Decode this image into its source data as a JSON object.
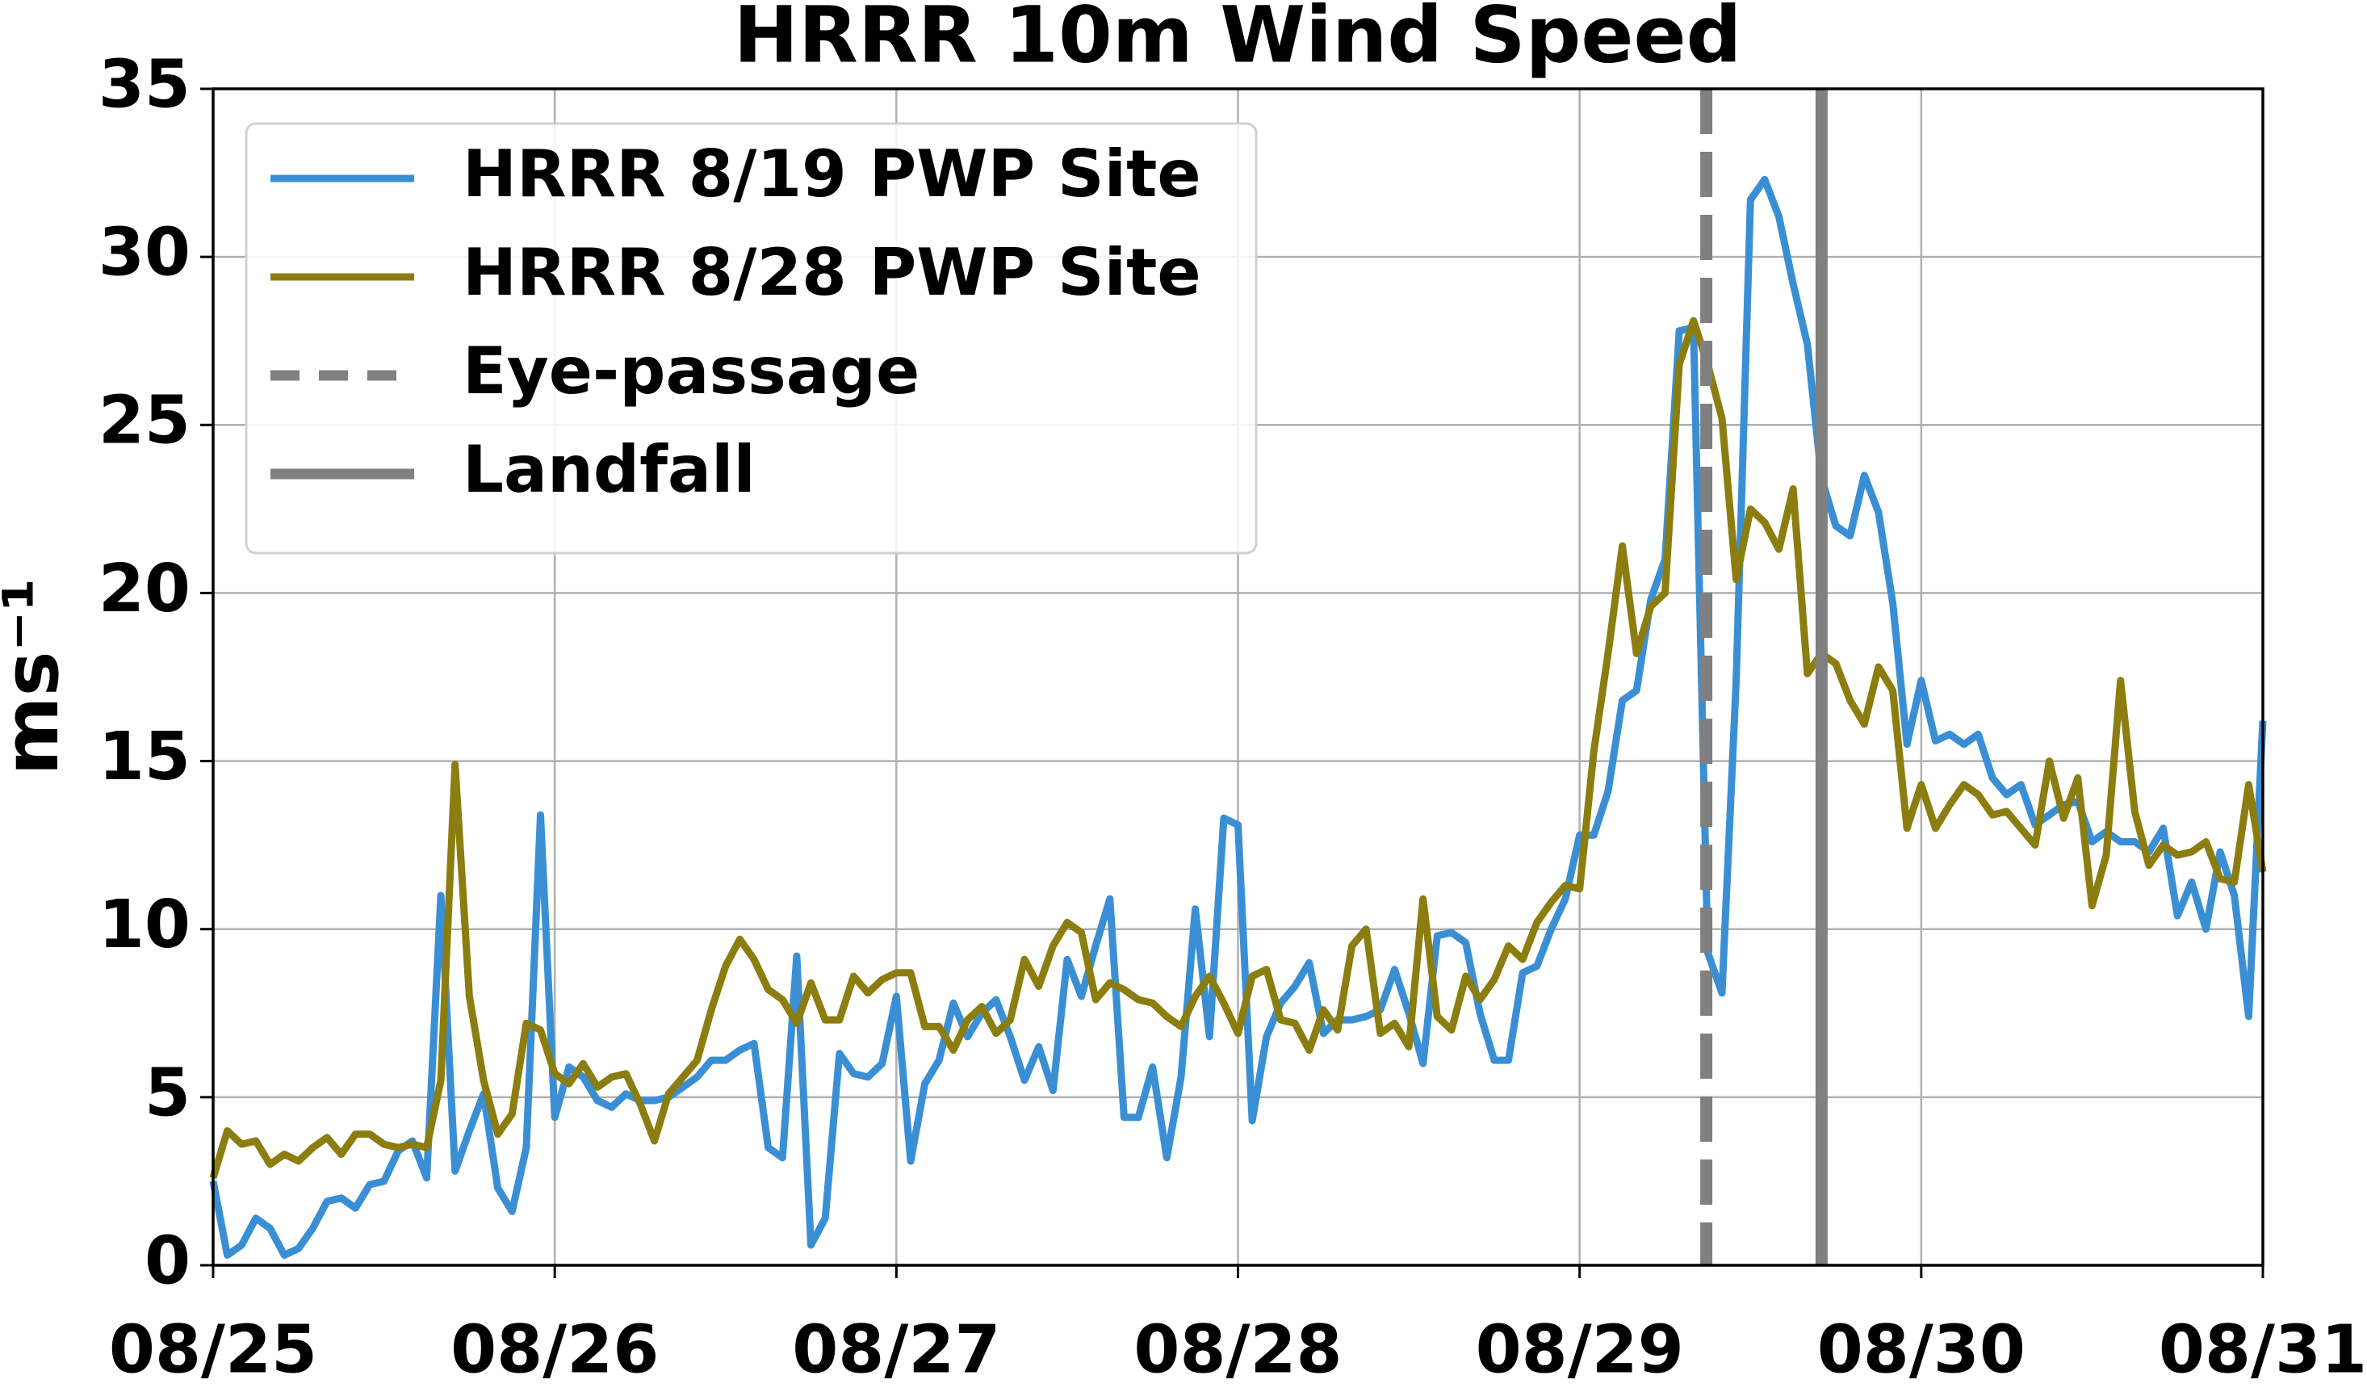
{
  "chart_data": {
    "type": "line",
    "title": "HRRR 10m Wind Speed",
    "y_label": "ms⁻¹",
    "x": [
      0,
      1,
      2,
      3,
      4,
      5,
      6,
      7,
      8,
      9,
      10,
      11,
      12,
      13,
      14,
      15,
      16,
      17,
      18,
      19,
      20,
      21,
      22,
      23,
      24,
      25,
      26,
      27,
      28,
      29,
      30,
      31,
      32,
      33,
      34,
      35,
      36,
      37,
      38,
      39,
      40,
      41,
      42,
      43,
      44,
      45,
      46,
      47,
      48,
      49,
      50,
      51,
      52,
      53,
      54,
      55,
      56,
      57,
      58,
      59,
      60,
      61,
      62,
      63,
      64,
      65,
      66,
      67,
      68,
      69,
      70,
      71,
      72,
      73,
      74,
      75,
      76,
      77,
      78,
      79,
      80,
      81,
      82,
      83,
      84,
      85,
      86,
      87,
      88,
      89,
      90,
      91,
      92,
      93,
      94,
      95,
      96,
      97,
      98,
      99,
      100,
      101,
      102,
      103,
      104,
      105,
      106,
      107,
      108,
      109,
      110,
      111,
      112,
      113,
      114,
      115,
      116,
      117,
      118,
      119,
      120,
      121,
      122,
      123,
      124,
      125,
      126,
      127,
      128,
      129,
      130,
      131,
      132,
      133,
      134,
      135,
      136,
      137,
      138,
      139,
      140,
      141,
      142,
      143,
      144
    ],
    "series": [
      {
        "name": "HRRR 8/19 PWP Site",
        "color": "#3a8fd4",
        "values": [
          2.5,
          0.3,
          0.6,
          1.4,
          1.1,
          0.3,
          0.5,
          1.1,
          1.9,
          2.0,
          1.7,
          2.4,
          2.5,
          3.4,
          3.7,
          2.6,
          11.0,
          2.8,
          4.0,
          5.1,
          2.3,
          1.6,
          3.5,
          13.4,
          4.4,
          5.9,
          5.6,
          4.9,
          4.7,
          5.1,
          4.9,
          4.9,
          5.0,
          5.3,
          5.6,
          6.1,
          6.1,
          6.4,
          6.6,
          3.5,
          3.2,
          9.2,
          0.6,
          1.4,
          6.3,
          5.7,
          5.6,
          6.0,
          8.0,
          3.1,
          5.4,
          6.1,
          7.8,
          6.8,
          7.5,
          7.9,
          6.8,
          5.5,
          6.5,
          5.2,
          9.1,
          8.0,
          9.5,
          10.9,
          4.4,
          4.4,
          5.9,
          3.2,
          5.6,
          10.6,
          6.8,
          13.3,
          13.1,
          4.3,
          6.8,
          7.8,
          8.3,
          9.0,
          6.9,
          7.3,
          7.3,
          7.4,
          7.6,
          8.8,
          7.5,
          6.0,
          9.8,
          9.9,
          9.6,
          7.5,
          6.1,
          6.1,
          8.7,
          8.9,
          10.0,
          10.9,
          12.8,
          12.8,
          14.1,
          16.8,
          17.1,
          19.8,
          21.0,
          27.8,
          27.9,
          9.3,
          8.1,
          17.4,
          31.7,
          32.3,
          31.2,
          29.2,
          27.4,
          23.4,
          22.0,
          21.7,
          23.5,
          22.4,
          19.7,
          15.5,
          17.4,
          15.6,
          15.8,
          15.5,
          15.8,
          14.5,
          14.0,
          14.3,
          13.1,
          13.4,
          13.7,
          13.8,
          12.6,
          12.9,
          12.6,
          12.6,
          12.3,
          13.0,
          10.4,
          11.4,
          10.0,
          12.3,
          11.0,
          7.4,
          16.2
        ]
      },
      {
        "name": "HRRR 8/28 PWP Site",
        "color": "#8b7d0f",
        "values": [
          2.6,
          4.0,
          3.6,
          3.7,
          3.0,
          3.3,
          3.1,
          3.5,
          3.8,
          3.3,
          3.9,
          3.9,
          3.6,
          3.5,
          3.6,
          3.5,
          5.5,
          14.9,
          8.0,
          5.5,
          3.9,
          4.5,
          7.2,
          7.0,
          5.7,
          5.4,
          6.0,
          5.3,
          5.6,
          5.7,
          4.8,
          3.7,
          5.1,
          5.6,
          6.1,
          7.6,
          8.9,
          9.7,
          9.1,
          8.2,
          7.9,
          7.2,
          8.4,
          7.3,
          7.3,
          8.6,
          8.1,
          8.5,
          8.7,
          8.7,
          7.1,
          7.1,
          6.4,
          7.3,
          7.7,
          6.9,
          7.3,
          9.1,
          8.3,
          9.5,
          10.2,
          9.9,
          7.9,
          8.4,
          8.2,
          7.9,
          7.8,
          7.4,
          7.1,
          8.0,
          8.6,
          7.8,
          6.9,
          8.6,
          8.8,
          7.3,
          7.2,
          6.4,
          7.6,
          7.0,
          9.5,
          10.0,
          6.9,
          7.2,
          6.5,
          10.9,
          7.4,
          7.0,
          8.6,
          7.9,
          8.5,
          9.5,
          9.1,
          10.2,
          10.8,
          11.3,
          11.2,
          15.3,
          18.2,
          21.4,
          18.2,
          19.6,
          20.0,
          26.8,
          28.1,
          26.8,
          25.2,
          20.4,
          22.5,
          22.1,
          21.3,
          23.1,
          17.6,
          18.2,
          17.9,
          16.8,
          16.1,
          17.8,
          17.1,
          13.0,
          14.3,
          13.0,
          13.7,
          14.3,
          14.0,
          13.4,
          13.5,
          13.0,
          12.5,
          15.0,
          13.3,
          14.5,
          10.7,
          12.2,
          17.4,
          13.5,
          11.9,
          12.5,
          12.2,
          12.3,
          12.6,
          11.5,
          11.4,
          14.3,
          11.7
        ]
      }
    ],
    "vlines": [
      {
        "name": "Eye-passage",
        "x": 104.9,
        "color": "#808080",
        "dashed": true
      },
      {
        "name": "Landfall",
        "x": 113,
        "color": "#808080",
        "dashed": false
      }
    ],
    "xlim": [
      0,
      144
    ],
    "xticks": [
      {
        "value": 0,
        "label": "08/25"
      },
      {
        "value": 24,
        "label": "08/26"
      },
      {
        "value": 48,
        "label": "08/27"
      },
      {
        "value": 72,
        "label": "08/28"
      },
      {
        "value": 96,
        "label": "08/29"
      },
      {
        "value": 120,
        "label": "08/30"
      },
      {
        "value": 144,
        "label": "08/31"
      }
    ],
    "ylim": [
      0,
      35
    ],
    "yticks": [
      0,
      5,
      10,
      15,
      20,
      25,
      30,
      35
    ],
    "grid": true,
    "legend": "upper left"
  }
}
